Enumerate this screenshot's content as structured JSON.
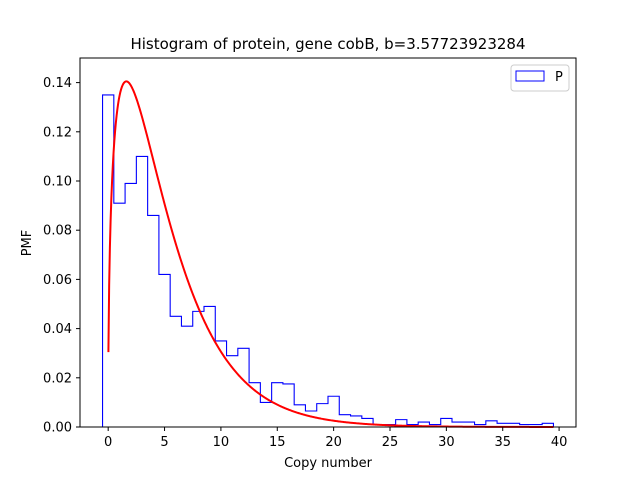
{
  "chart_data": {
    "type": "histogram",
    "title": "Histogram of protein, gene cobB, b=3.57723923284",
    "xlabel": "Copy number",
    "ylabel": "PMF",
    "xlim": [
      -2.5,
      41.5
    ],
    "ylim": [
      0,
      0.15
    ],
    "xticks": [
      0,
      5,
      10,
      15,
      20,
      25,
      30,
      35,
      40
    ],
    "yticks": [
      0.0,
      0.02,
      0.04,
      0.06,
      0.08,
      0.1,
      0.12,
      0.14
    ],
    "xtick_labels": [
      "0",
      "5",
      "10",
      "15",
      "20",
      "25",
      "30",
      "35",
      "40"
    ],
    "ytick_labels": [
      "0.00",
      "0.02",
      "0.04",
      "0.06",
      "0.08",
      "0.10",
      "0.12",
      "0.14"
    ],
    "legend": {
      "location": "upper right",
      "entries": [
        "P"
      ]
    },
    "histogram": {
      "name": "P",
      "color": "#0000ff",
      "bin_edges": [
        -0.5,
        0.5,
        1.5,
        2.5,
        3.5,
        4.5,
        5.5,
        6.5,
        7.5,
        8.5,
        9.5,
        10.5,
        11.5,
        12.5,
        13.5,
        14.5,
        15.5,
        16.5,
        17.5,
        18.5,
        19.5,
        20.5,
        21.5,
        22.5,
        23.5,
        24.5,
        25.5,
        26.5,
        27.5,
        28.5,
        29.5,
        30.5,
        31.5,
        32.5,
        33.5,
        34.5,
        35.5,
        36.5,
        37.5,
        38.5,
        39.5
      ],
      "values": [
        0.135,
        0.091,
        0.099,
        0.11,
        0.086,
        0.062,
        0.045,
        0.041,
        0.047,
        0.049,
        0.035,
        0.029,
        0.032,
        0.018,
        0.01,
        0.018,
        0.0175,
        0.009,
        0.0065,
        0.0095,
        0.0125,
        0.005,
        0.0045,
        0.0035,
        0.001,
        0.001,
        0.003,
        0.001,
        0.002,
        0.001,
        0.0035,
        0.002,
        0.002,
        0.001,
        0.0025,
        0.0015,
        0.0015,
        0.001,
        0.001,
        0.0015
      ]
    },
    "fit_curve": {
      "color": "#ff0000",
      "shape": "gamma",
      "a": 1.45,
      "b": 3.57723923284,
      "x_range": [
        0.02,
        39.5
      ]
    }
  }
}
